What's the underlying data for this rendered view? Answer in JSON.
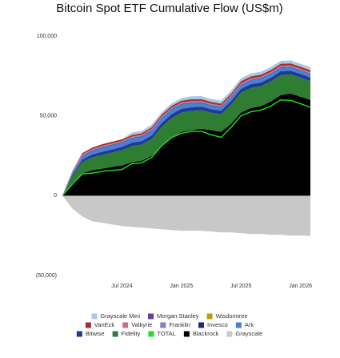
{
  "chart_data": {
    "type": "area",
    "stacked": true,
    "title": "Bitcoin Spot ETF Cumulative Flow (US$m)",
    "x": [
      "Jan 2024",
      "Feb 2024",
      "Mar 2024",
      "Apr 2024",
      "May 2024",
      "Jun 2024",
      "Jul 2024",
      "Aug 2024",
      "Sep 2024",
      "Oct 2024",
      "Nov 2024",
      "Dec 2024",
      "Jan 2025",
      "Feb 2025",
      "Mar 2025",
      "Apr 2025",
      "May 2025",
      "Jun 2025",
      "Jul 2025",
      "Aug 2025",
      "Sep 2025",
      "Oct 2025",
      "Nov 2025",
      "Dec 2025",
      "Jan 2026",
      "Feb 2026"
    ],
    "xticks": [
      "Jul 2024",
      "Jan 2025",
      "Jul 2025",
      "Jan 2026"
    ],
    "ylim": [
      -50000,
      100000
    ],
    "yticks": [
      {
        "value": -50000,
        "label": "(50,000)"
      },
      0,
      {
        "value": 50000,
        "label": "50,000"
      },
      {
        "value": 100000,
        "label": "100,000"
      }
    ],
    "series": [
      {
        "name": "Grayscale Mini",
        "color": "#a9c8e8",
        "values": [
          0,
          0,
          0,
          0,
          0,
          0,
          0,
          1500,
          1500,
          1500,
          1500,
          1500,
          1500,
          1800,
          1800,
          1800,
          1800,
          1800,
          1800,
          1800,
          1800,
          1800,
          1800,
          1800,
          1800,
          1800
        ]
      },
      {
        "name": "Morgan Stanley",
        "color": "#6a3d9a",
        "values": [
          0,
          0,
          0,
          0,
          0,
          0,
          0,
          0,
          0,
          0,
          0,
          0,
          0,
          0,
          0,
          0,
          0,
          0,
          0,
          0,
          0,
          0,
          0,
          0,
          0,
          50
        ]
      },
      {
        "name": "Wisdomtree",
        "color": "#b8a000",
        "values": [
          0,
          0,
          50,
          50,
          50,
          50,
          50,
          50,
          50,
          50,
          50,
          50,
          50,
          50,
          50,
          50,
          50,
          50,
          50,
          50,
          50,
          50,
          50,
          50,
          50,
          50
        ]
      },
      {
        "name": "VanEck",
        "color": "#a0332f",
        "values": [
          0,
          500,
          800,
          900,
          1000,
          1000,
          1000,
          1000,
          1000,
          1100,
          1200,
          1200,
          1200,
          1200,
          1200,
          1200,
          1200,
          1200,
          1300,
          1300,
          1300,
          1300,
          1300,
          1300,
          1300,
          1300
        ]
      },
      {
        "name": "Valkyrie",
        "color": "#d16b8a",
        "values": [
          0,
          300,
          500,
          500,
          500,
          500,
          500,
          500,
          500,
          500,
          500,
          500,
          500,
          500,
          500,
          500,
          500,
          500,
          500,
          500,
          500,
          500,
          500,
          500,
          500,
          500
        ]
      },
      {
        "name": "Franklin",
        "color": "#8e7cc3",
        "values": [
          0,
          200,
          400,
          400,
          400,
          400,
          400,
          400,
          400,
          400,
          400,
          400,
          400,
          400,
          400,
          400,
          400,
          400,
          400,
          400,
          400,
          400,
          400,
          400,
          400,
          400
        ]
      },
      {
        "name": "Invesco",
        "color": "#1a2f6b",
        "values": [
          0,
          200,
          300,
          300,
          300,
          300,
          300,
          300,
          300,
          300,
          300,
          300,
          300,
          300,
          300,
          300,
          300,
          300,
          300,
          300,
          300,
          300,
          300,
          300,
          300,
          300
        ]
      },
      {
        "name": "Ark",
        "color": "#4a7fd8",
        "values": [
          0,
          1000,
          2000,
          2200,
          2500,
          2600,
          2500,
          2600,
          2700,
          2800,
          2800,
          2800,
          2600,
          2600,
          2300,
          2200,
          2100,
          2200,
          2300,
          2300,
          2400,
          2300,
          2200,
          2100,
          2000,
          2000
        ]
      },
      {
        "name": "Bitwise",
        "color": "#1f3a93",
        "values": [
          0,
          1000,
          1600,
          1800,
          2000,
          2000,
          2100,
          2200,
          2200,
          2300,
          2500,
          2600,
          2500,
          2400,
          2300,
          2200,
          2200,
          2300,
          2400,
          2400,
          2400,
          2400,
          2400,
          2300,
          2300,
          2300
        ]
      },
      {
        "name": "Fidelity",
        "color": "#2e7d32",
        "values": [
          0,
          4000,
          7000,
          8000,
          8500,
          9000,
          9500,
          10000,
          10000,
          10500,
          12000,
          12500,
          12000,
          12000,
          11500,
          11000,
          11000,
          12000,
          12500,
          12500,
          12500,
          12500,
          12500,
          12000,
          12000,
          11800
        ]
      },
      {
        "name": "TOTAL",
        "color": "#22dd22",
        "type": "line",
        "values": [
          0,
          7200,
          13650,
          14150,
          15250,
          15850,
          16350,
          20050,
          20650,
          23950,
          31250,
          36350,
          39050,
          40250,
          40350,
          38150,
          36550,
          42750,
          50050,
          52550,
          53650,
          56050,
          59950,
          59750,
          57650,
          55300
        ]
      },
      {
        "name": "Blackrock",
        "color": "#000000",
        "values": [
          0,
          8000,
          14000,
          16000,
          17000,
          18000,
          19000,
          21000,
          22000,
          25000,
          31000,
          36000,
          40000,
          41000,
          42000,
          41000,
          40000,
          45000,
          52000,
          55000,
          56000,
          59000,
          63000,
          64000,
          62000,
          60000
        ]
      },
      {
        "name": "Grayscale",
        "color": "#c8c8c8",
        "values": [
          0,
          -8000,
          -13000,
          -16000,
          -17000,
          -18000,
          -19000,
          -19500,
          -20000,
          -20500,
          -21000,
          -21500,
          -22000,
          -22000,
          -22000,
          -22500,
          -23000,
          -23000,
          -23500,
          -24000,
          -24000,
          -24500,
          -24500,
          -25000,
          -25000,
          -25200
        ]
      }
    ]
  }
}
